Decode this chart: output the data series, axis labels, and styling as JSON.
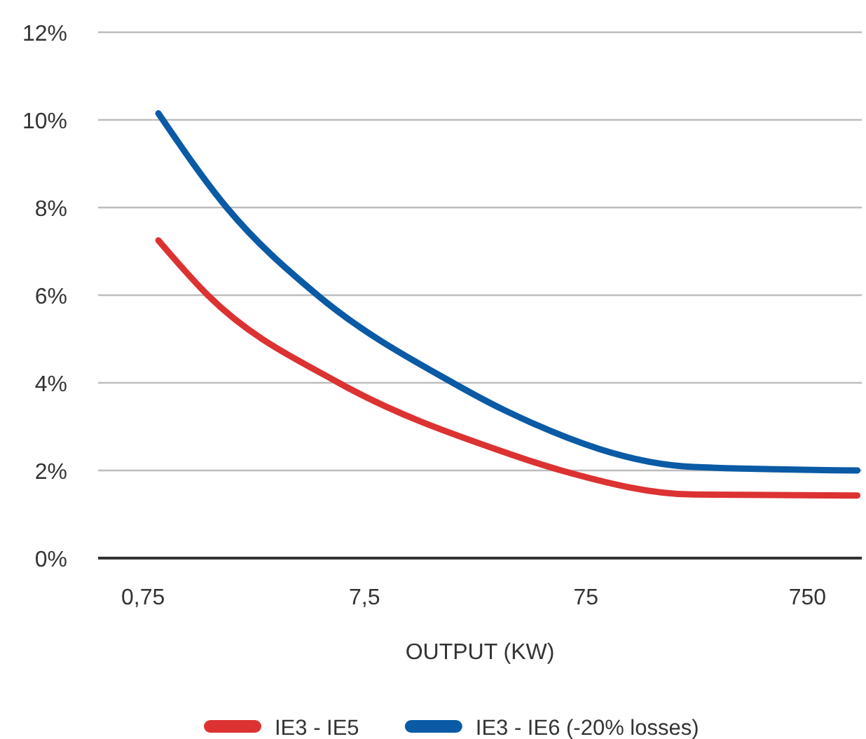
{
  "chart_data": {
    "type": "line",
    "xlabel": "OUTPUT (KW)",
    "log": "x",
    "xlim": [
      0.47,
      1320
    ],
    "xticks": [
      {
        "value": 0.75,
        "label": "0,75"
      },
      {
        "value": 7.5,
        "label": "7,5"
      },
      75,
      750
    ],
    "ylim": [
      0,
      12
    ],
    "yticks": [
      {
        "value": 0,
        "label": "0%"
      },
      {
        "value": 2,
        "label": "2%"
      },
      {
        "value": 4,
        "label": "4%"
      },
      {
        "value": 6,
        "label": "6%"
      },
      {
        "value": 8,
        "label": "8%"
      },
      {
        "value": 10,
        "label": "10%"
      },
      {
        "value": 12,
        "label": "12%"
      }
    ],
    "grid": "y",
    "legend": "bottom",
    "marker": "none",
    "line_style": "solid",
    "series": [
      {
        "name": "IE3 - IE5",
        "color": "#dc3232",
        "x": [
          0.88,
          1.47,
          5.74,
          32,
          58,
          230,
          1260
        ],
        "values": [
          7.25,
          6,
          4,
          2.42,
          2.0,
          1.45,
          1.43
        ]
      },
      {
        "name": "IE3 - IE6 (-20% losses)",
        "color": "#0a5aa5",
        "x": [
          0.88,
          1.79,
          4.6,
          18.8,
          32,
          230,
          1260
        ],
        "values": [
          10.15,
          8,
          6,
          4,
          3.38,
          2.08,
          2.0
        ]
      }
    ]
  }
}
